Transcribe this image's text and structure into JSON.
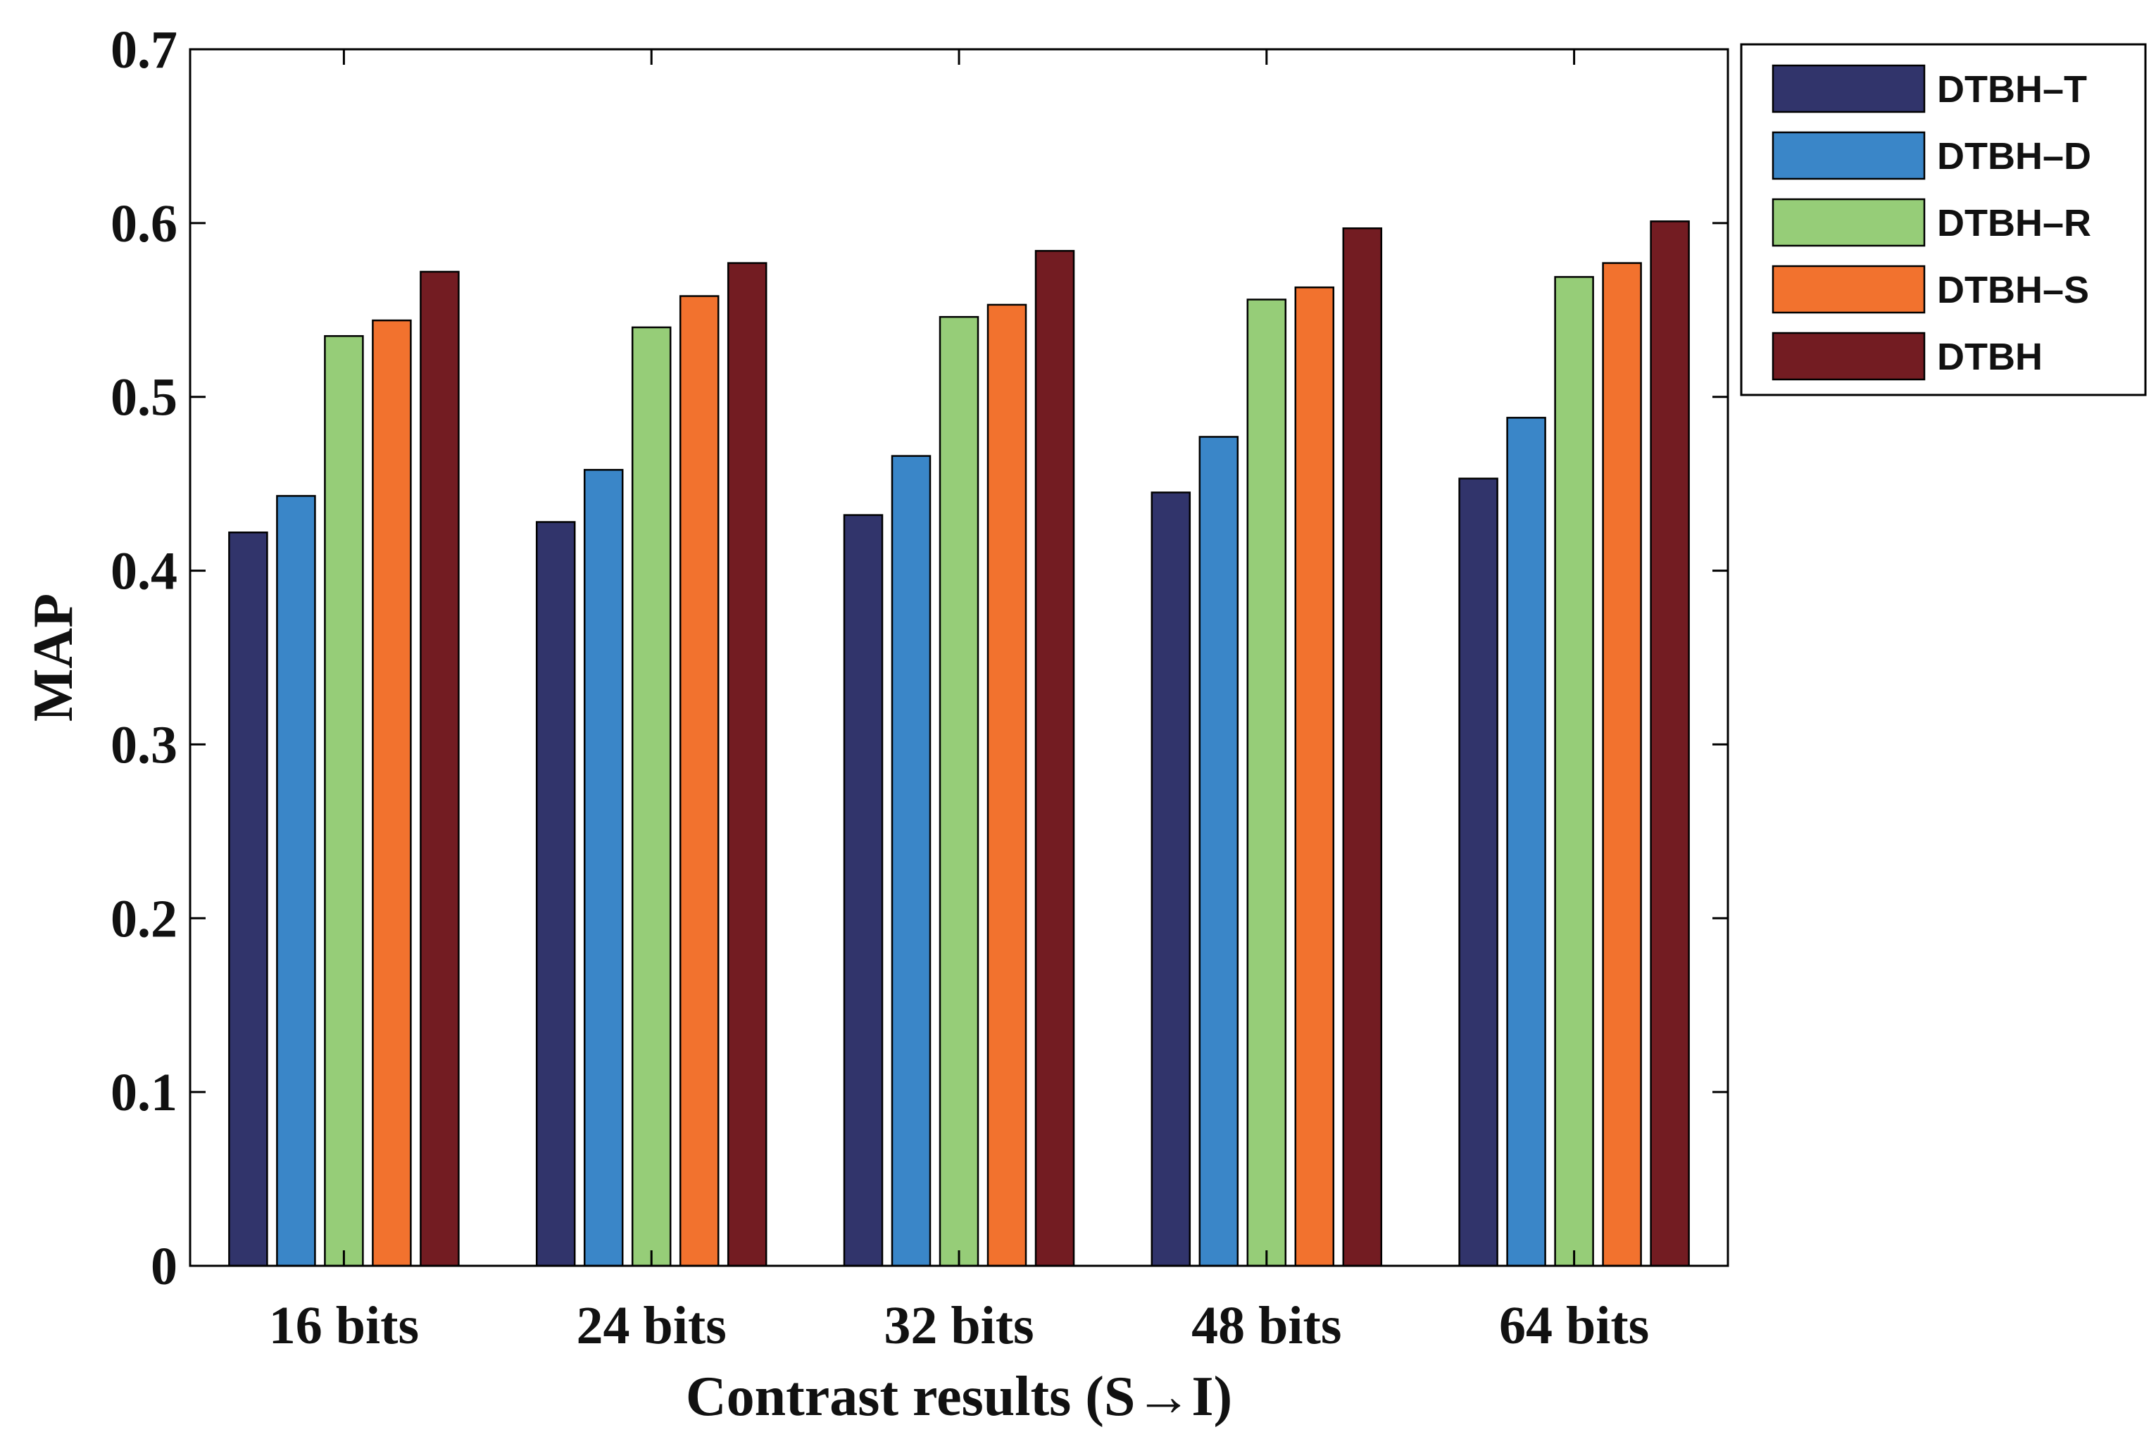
{
  "chart_data": {
    "type": "bar",
    "title": "",
    "xlabel": "Contrast results (S→I)",
    "ylabel": "MAP",
    "ylim": [
      0,
      0.7
    ],
    "yticks": [
      "0",
      "0.1",
      "0.2",
      "0.3",
      "0.4",
      "0.5",
      "0.6",
      "0.7"
    ],
    "categories": [
      "16 bits",
      "24 bits",
      "32 bits",
      "48 bits",
      "64 bits"
    ],
    "legend_position": "outside-top-right",
    "grid": false,
    "series": [
      {
        "name": "DTBH–T",
        "color": "#31346b",
        "values": [
          0.422,
          0.428,
          0.432,
          0.445,
          0.453
        ]
      },
      {
        "name": "DTBH–D",
        "color": "#3a86c8",
        "values": [
          0.443,
          0.458,
          0.466,
          0.477,
          0.488
        ]
      },
      {
        "name": "DTBH–R",
        "color": "#96cd78",
        "values": [
          0.535,
          0.54,
          0.546,
          0.556,
          0.569
        ]
      },
      {
        "name": "DTBH–S",
        "color": "#f2722e",
        "values": [
          0.544,
          0.558,
          0.553,
          0.563,
          0.577
        ]
      },
      {
        "name": "DTBH",
        "color": "#731c22",
        "values": [
          0.572,
          0.577,
          0.584,
          0.597,
          0.601
        ]
      }
    ]
  }
}
